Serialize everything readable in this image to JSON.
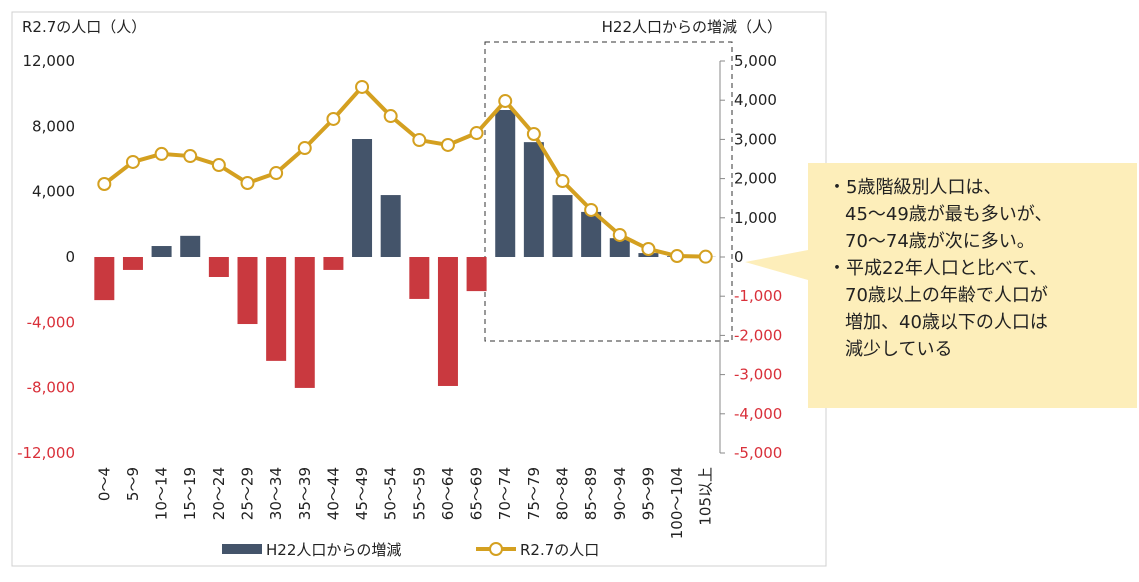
{
  "chart_data": {
    "type": "combo",
    "y_axis_label": "R2.7の人口（人）",
    "y2_axis_label": "H22人口からの増減（人）",
    "categories": [
      "0～4",
      "5～9",
      "10～14",
      "15～19",
      "20～24",
      "25～29",
      "30～34",
      "35～39",
      "40～44",
      "45～49",
      "50～54",
      "55～59",
      "60～64",
      "65～69",
      "70～74",
      "75～79",
      "80～84",
      "85～89",
      "90～94",
      "95～99",
      "100～104",
      "105以上"
    ],
    "series": [
      {
        "name": "H22人口からの増減",
        "type": "bar",
        "axis": "y2",
        "color": "#44546a",
        "negative_color": "#c9393f",
        "values": [
          -1100,
          -330,
          280,
          540,
          -510,
          -1710,
          -2650,
          -3340,
          -330,
          3010,
          1580,
          -1070,
          -3290,
          -870,
          3750,
          2930,
          1580,
          1150,
          480,
          100,
          20,
          5
        ]
      },
      {
        "name": "R2.7の人口",
        "type": "line",
        "axis": "y",
        "color": "#d4a020",
        "values": [
          4470,
          5820,
          6310,
          6180,
          5630,
          4530,
          5140,
          6670,
          8450,
          10410,
          8630,
          7160,
          6860,
          7590,
          9550,
          7530,
          4650,
          2880,
          1350,
          490,
          60,
          20
        ]
      }
    ],
    "ylim": [
      -12000,
      12000
    ],
    "yticks": [
      {
        "value": -12000,
        "label": "-12,000"
      },
      {
        "value": -8000,
        "label": "-8,000"
      },
      {
        "value": -4000,
        "label": "-4,000"
      },
      0,
      {
        "value": 4000,
        "label": "4,000"
      },
      {
        "value": 8000,
        "label": "8,000"
      },
      {
        "value": 12000,
        "label": "12,000"
      }
    ],
    "y2lim": [
      -5000,
      5000
    ],
    "y2ticks": [
      {
        "value": -5000,
        "label": "-5,000"
      },
      {
        "value": -4000,
        "label": "-4,000"
      },
      {
        "value": -3000,
        "label": "-3,000"
      },
      {
        "value": -2000,
        "label": "-2,000"
      },
      {
        "value": -1000,
        "label": "-1,000"
      },
      0,
      {
        "value": 1000,
        "label": "1,000"
      },
      {
        "value": 2000,
        "label": "2,000"
      },
      {
        "value": 3000,
        "label": "3,000"
      },
      {
        "value": 4000,
        "label": "4,000"
      },
      {
        "value": 5000,
        "label": "5,000"
      }
    ],
    "legend": "bottom",
    "annotation": [
      "・5歳階級別人口は、",
      "45～49歳が最も多いが、",
      "70～74歳が次に多い。",
      "・平成22年人口と比べて、",
      "70歳以上の年齢で人口が",
      "増加、40歳以下の人口は",
      "減少している"
    ]
  }
}
